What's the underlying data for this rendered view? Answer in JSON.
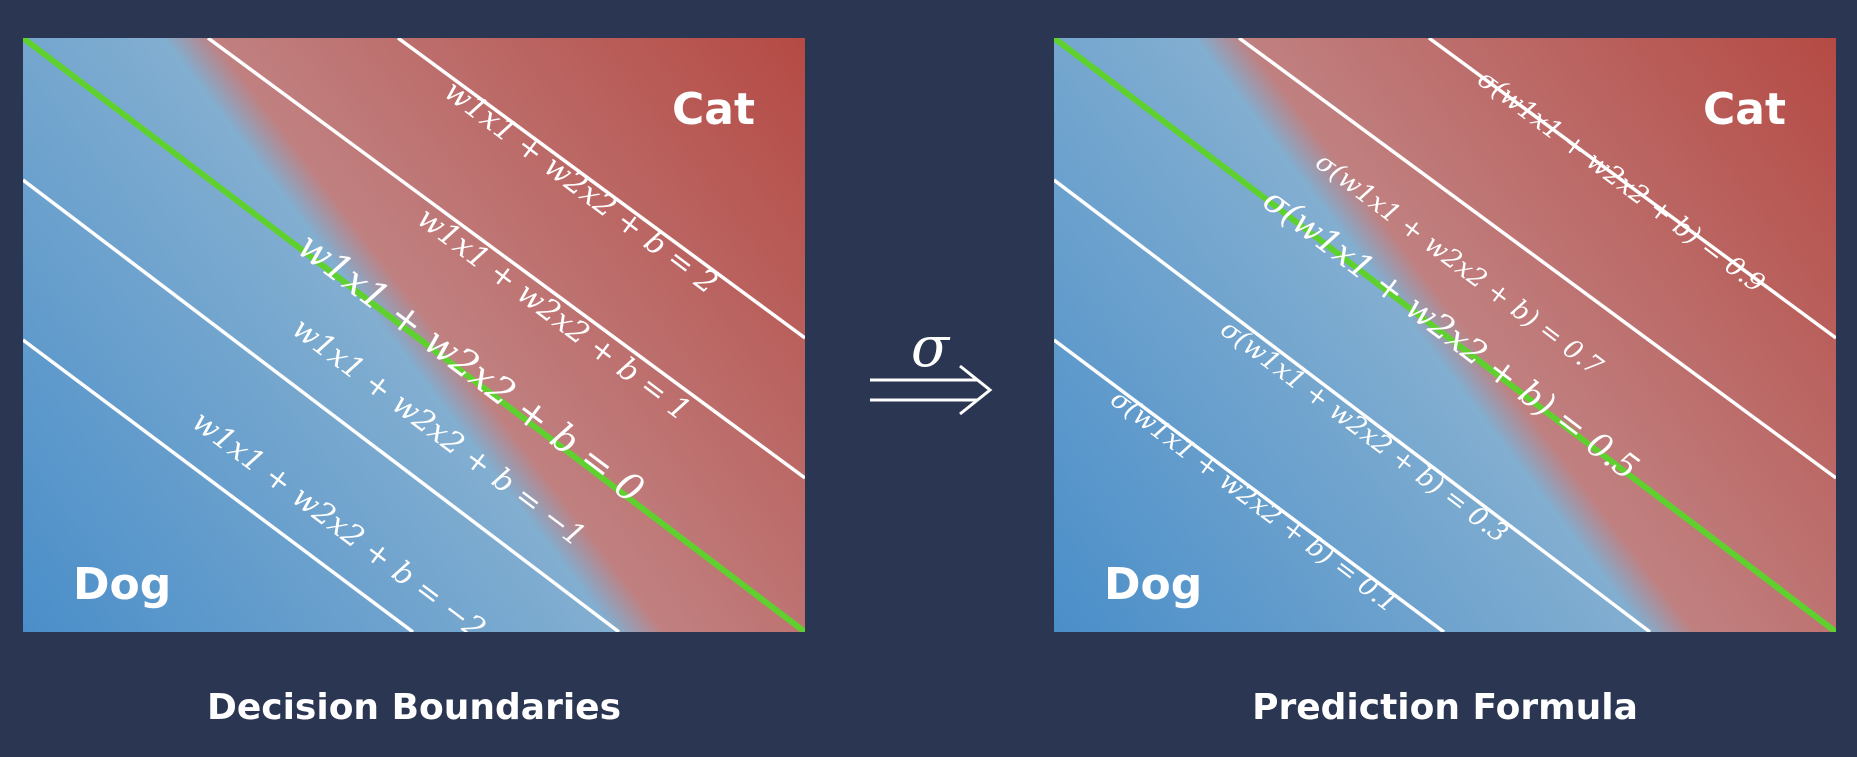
{
  "colors": {
    "background": "#2b3752",
    "cat_red": "#b54a44",
    "mid_pink": "#c08080",
    "dog_blue": "#4a8ec9",
    "light_blue": "#82aed0",
    "boundary_green": "#5fd12e",
    "line_white": "#ffffff"
  },
  "arrow": {
    "symbol": "σ",
    "icon": "double-arrow-right-icon"
  },
  "panels": [
    {
      "caption": "Decision Boundaries",
      "region_top": "Cat",
      "region_bottom": "Dog",
      "lines": [
        {
          "label": "w1x1 + w2x2 + b = 2",
          "kind": "level",
          "value": "2"
        },
        {
          "label": "w1x1 + w2x2 + b = 1",
          "kind": "level",
          "value": "1"
        },
        {
          "label": "w1x1 + w2x2 + b = 0",
          "kind": "boundary",
          "value": "0"
        },
        {
          "label": "w1x1 + w2x2 + b = −1",
          "kind": "level",
          "value": "−1"
        },
        {
          "label": "w1x1 + w2x2 + b = −2",
          "kind": "level",
          "value": "−2"
        }
      ]
    },
    {
      "caption": "Prediction Formula",
      "region_top": "Cat",
      "region_bottom": "Dog",
      "lines": [
        {
          "label": "σ(w1x1 + w2x2 + b) = 0.9",
          "kind": "level",
          "value": "0.9"
        },
        {
          "label": "σ(w1x1 + w2x2 + b) = 0.7",
          "kind": "level",
          "value": "0.7"
        },
        {
          "label": "σ(w1x1 + w2x2 + b) = 0.5",
          "kind": "boundary",
          "value": "0.5"
        },
        {
          "label": "σ(w1x1 + w2x2 + b) = 0.3",
          "kind": "level",
          "value": "0.3"
        },
        {
          "label": "σ(w1x1 + w2x2 + b) = 0.1",
          "kind": "level",
          "value": "0.1"
        }
      ]
    }
  ]
}
